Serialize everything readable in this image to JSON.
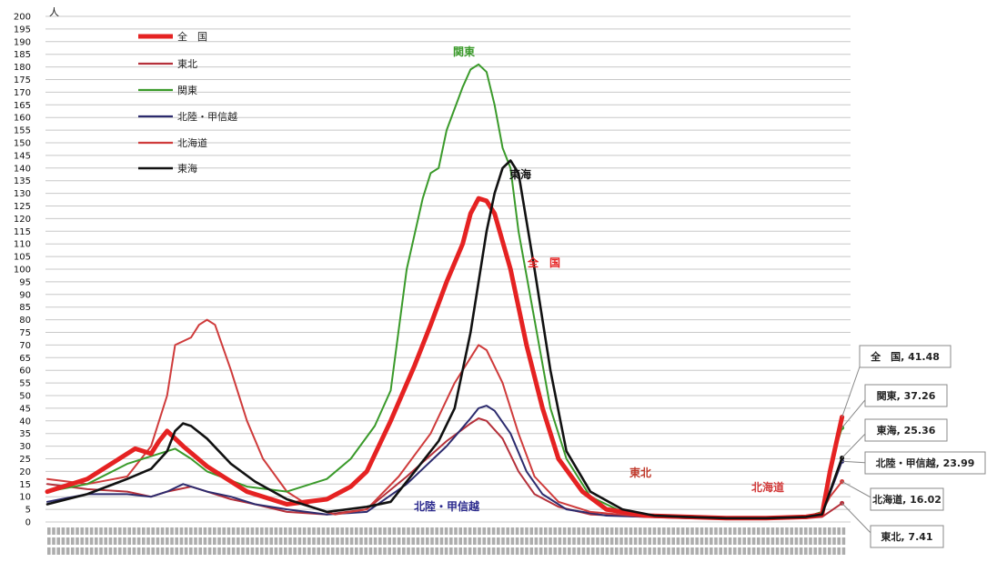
{
  "chart_data": {
    "type": "line",
    "y_unit": "人",
    "ylim": [
      0,
      200
    ],
    "y_ticks": [
      0,
      5,
      10,
      15,
      20,
      25,
      30,
      35,
      40,
      45,
      50,
      55,
      60,
      65,
      70,
      75,
      80,
      85,
      90,
      95,
      100,
      105,
      110,
      115,
      120,
      125,
      130,
      135,
      140,
      145,
      150,
      155,
      160,
      165,
      170,
      175,
      180,
      185,
      190,
      195,
      200
    ],
    "grid": true,
    "legend_position": "top-left",
    "x_points": 100,
    "series": [
      {
        "name": "全　国",
        "color": "#e52222",
        "width": 5,
        "points": [
          [
            0,
            12
          ],
          [
            5,
            17
          ],
          [
            9,
            25
          ],
          [
            11,
            29
          ],
          [
            13,
            27
          ],
          [
            14,
            32
          ],
          [
            15,
            36
          ],
          [
            17,
            30
          ],
          [
            20,
            22
          ],
          [
            25,
            12
          ],
          [
            30,
            7
          ],
          [
            35,
            9
          ],
          [
            38,
            14
          ],
          [
            40,
            20
          ],
          [
            43,
            40
          ],
          [
            46,
            62
          ],
          [
            48,
            78
          ],
          [
            50,
            95
          ],
          [
            52,
            110
          ],
          [
            53,
            122
          ],
          [
            54,
            128
          ],
          [
            55,
            127
          ],
          [
            56,
            122
          ],
          [
            58,
            100
          ],
          [
            60,
            70
          ],
          [
            62,
            45
          ],
          [
            64,
            25
          ],
          [
            67,
            12
          ],
          [
            70,
            5
          ],
          [
            75,
            2.5
          ],
          [
            80,
            2
          ],
          [
            85,
            1.5
          ],
          [
            90,
            1.5
          ],
          [
            95,
            2
          ],
          [
            97,
            3
          ],
          [
            98,
            20
          ],
          [
            99.5,
            41.48
          ]
        ]
      },
      {
        "name": "東北",
        "color": "#b5303a",
        "width": 2,
        "points": [
          [
            0,
            15
          ],
          [
            5,
            13
          ],
          [
            10,
            12
          ],
          [
            13,
            10
          ],
          [
            15,
            12
          ],
          [
            18,
            14
          ],
          [
            20,
            12
          ],
          [
            23,
            9
          ],
          [
            26,
            7
          ],
          [
            30,
            4
          ],
          [
            35,
            3
          ],
          [
            40,
            5
          ],
          [
            45,
            18
          ],
          [
            50,
            32
          ],
          [
            53,
            39
          ],
          [
            54,
            41
          ],
          [
            55,
            40
          ],
          [
            57,
            33
          ],
          [
            59,
            20
          ],
          [
            61,
            11
          ],
          [
            64,
            6
          ],
          [
            68,
            3
          ],
          [
            75,
            2
          ],
          [
            80,
            2
          ],
          [
            85,
            1.5
          ],
          [
            90,
            1.5
          ],
          [
            95,
            1.5
          ],
          [
            97,
            2
          ],
          [
            99.5,
            7.41
          ]
        ]
      },
      {
        "name": "関東",
        "color": "#3a9a2a",
        "width": 2,
        "points": [
          [
            0,
            12
          ],
          [
            5,
            15
          ],
          [
            10,
            23
          ],
          [
            13,
            26
          ],
          [
            15,
            28
          ],
          [
            16,
            29
          ],
          [
            18,
            25
          ],
          [
            20,
            20
          ],
          [
            25,
            14
          ],
          [
            30,
            12
          ],
          [
            35,
            17
          ],
          [
            38,
            25
          ],
          [
            41,
            38
          ],
          [
            43,
            52
          ],
          [
            45,
            100
          ],
          [
            47,
            128
          ],
          [
            48,
            138
          ],
          [
            49,
            140
          ],
          [
            50,
            155
          ],
          [
            52,
            172
          ],
          [
            53,
            179
          ],
          [
            54,
            181
          ],
          [
            55,
            178
          ],
          [
            56,
            165
          ],
          [
            57,
            148
          ],
          [
            58,
            140
          ],
          [
            59,
            115
          ],
          [
            61,
            80
          ],
          [
            63,
            45
          ],
          [
            65,
            25
          ],
          [
            68,
            10
          ],
          [
            72,
            4
          ],
          [
            76,
            2.5
          ],
          [
            80,
            2
          ],
          [
            85,
            1.5
          ],
          [
            90,
            1.5
          ],
          [
            95,
            2
          ],
          [
            97,
            4
          ],
          [
            98,
            22
          ],
          [
            99.5,
            37.26
          ]
        ]
      },
      {
        "name": "北陸・甲信越",
        "color": "#2c2b6e",
        "width": 2,
        "points": [
          [
            0,
            8
          ],
          [
            5,
            11
          ],
          [
            10,
            11
          ],
          [
            13,
            10
          ],
          [
            15,
            12
          ],
          [
            17,
            15
          ],
          [
            20,
            12
          ],
          [
            23,
            10
          ],
          [
            26,
            7
          ],
          [
            30,
            5
          ],
          [
            35,
            3
          ],
          [
            40,
            4
          ],
          [
            45,
            15
          ],
          [
            50,
            30
          ],
          [
            53,
            41
          ],
          [
            54,
            45
          ],
          [
            55,
            46
          ],
          [
            56,
            44
          ],
          [
            58,
            35
          ],
          [
            60,
            20
          ],
          [
            62,
            11
          ],
          [
            65,
            5
          ],
          [
            70,
            2.5
          ],
          [
            75,
            2
          ],
          [
            80,
            1.5
          ],
          [
            85,
            1.5
          ],
          [
            90,
            1.5
          ],
          [
            95,
            2
          ],
          [
            97,
            3
          ],
          [
            99.5,
            23.99
          ]
        ]
      },
      {
        "name": "北海道",
        "color": "#cf3b3b",
        "width": 2,
        "points": [
          [
            0,
            17
          ],
          [
            5,
            15
          ],
          [
            10,
            18
          ],
          [
            13,
            30
          ],
          [
            15,
            50
          ],
          [
            16,
            70
          ],
          [
            18,
            73
          ],
          [
            19,
            78
          ],
          [
            20,
            80
          ],
          [
            21,
            78
          ],
          [
            23,
            60
          ],
          [
            25,
            40
          ],
          [
            27,
            25
          ],
          [
            30,
            12
          ],
          [
            33,
            6
          ],
          [
            36,
            3
          ],
          [
            40,
            5
          ],
          [
            44,
            18
          ],
          [
            48,
            35
          ],
          [
            51,
            55
          ],
          [
            53,
            65
          ],
          [
            54,
            70
          ],
          [
            55,
            68
          ],
          [
            57,
            55
          ],
          [
            59,
            35
          ],
          [
            61,
            18
          ],
          [
            64,
            8
          ],
          [
            68,
            4
          ],
          [
            75,
            2
          ],
          [
            80,
            2
          ],
          [
            85,
            1.5
          ],
          [
            90,
            1.5
          ],
          [
            95,
            2
          ],
          [
            97,
            4
          ],
          [
            98,
            10
          ],
          [
            99.5,
            16.02
          ]
        ]
      },
      {
        "name": "東海",
        "color": "#111111",
        "width": 2.6,
        "points": [
          [
            0,
            7
          ],
          [
            5,
            11
          ],
          [
            10,
            17
          ],
          [
            13,
            21
          ],
          [
            15,
            28
          ],
          [
            16,
            36
          ],
          [
            17,
            39
          ],
          [
            18,
            38
          ],
          [
            20,
            33
          ],
          [
            23,
            23
          ],
          [
            26,
            16
          ],
          [
            30,
            9
          ],
          [
            35,
            4
          ],
          [
            40,
            6
          ],
          [
            43,
            8
          ],
          [
            46,
            20
          ],
          [
            49,
            32
          ],
          [
            51,
            45
          ],
          [
            53,
            75
          ],
          [
            55,
            115
          ],
          [
            56,
            130
          ],
          [
            57,
            140
          ],
          [
            58,
            143
          ],
          [
            59,
            138
          ],
          [
            61,
            100
          ],
          [
            63,
            60
          ],
          [
            65,
            28
          ],
          [
            68,
            12
          ],
          [
            72,
            5
          ],
          [
            76,
            2.5
          ],
          [
            80,
            2
          ],
          [
            85,
            1.5
          ],
          [
            90,
            1.5
          ],
          [
            95,
            2
          ],
          [
            97,
            3
          ],
          [
            98,
            12
          ],
          [
            99.5,
            25.36
          ]
        ]
      }
    ],
    "annotations": [
      {
        "text": "関東",
        "color": "#3a9a2a"
      },
      {
        "text": "東海",
        "color": "#111111"
      },
      {
        "text": "全　国",
        "color": "#e52222"
      },
      {
        "text": "東北",
        "color": "#c0392b"
      },
      {
        "text": "北海道",
        "color": "#d23a3a"
      },
      {
        "text": "北陸・甲信越",
        "color": "#2c2b8e"
      }
    ],
    "callouts": [
      {
        "text": "全　国, 41.48",
        "value": 41.48
      },
      {
        "text": "関東, 37.26",
        "value": 37.26
      },
      {
        "text": "東海, 25.36",
        "value": 25.36
      },
      {
        "text": "北陸・甲信越, 23.99",
        "value": 23.99
      },
      {
        "text": "北海道, 16.02",
        "value": 16.02
      },
      {
        "text": "東北, 7.41",
        "value": 7.41
      }
    ]
  }
}
